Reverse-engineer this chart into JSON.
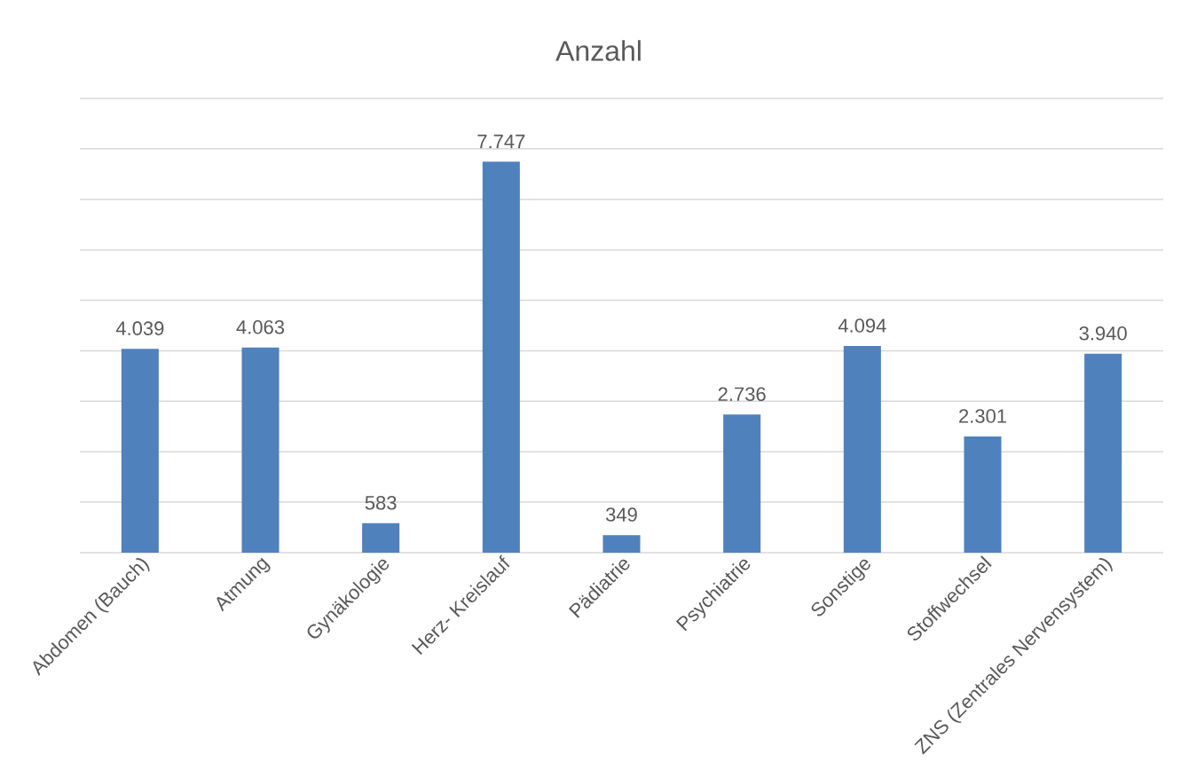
{
  "chart_data": {
    "type": "bar",
    "title": "Anzahl",
    "categories": [
      "Abdomen (Bauch)",
      "Atmung",
      "Gynäkologie",
      "Herz- Kreislauf",
      "Pädiatrie",
      "Psychiatrie",
      "Sonstige",
      "Stoffwechsel",
      "ZNS (Zentrales Nervensystem)"
    ],
    "values": [
      4039,
      4063,
      583,
      7747,
      349,
      2736,
      4094,
      2301,
      3940
    ],
    "value_labels": [
      "4.039",
      "4.063",
      "583",
      "7.747",
      "349",
      "2.736",
      "4.094",
      "2.301",
      "3.940"
    ],
    "color": "#4f81bd",
    "ylim": [
      0,
      9000
    ],
    "yticks": [
      {
        "value": 0,
        "label": null
      },
      {
        "value": 1000,
        "label": null
      },
      {
        "value": 2000,
        "label": null
      },
      {
        "value": 3000,
        "label": null
      },
      {
        "value": 4000,
        "label": null
      },
      {
        "value": 5000,
        "label": null
      },
      {
        "value": 6000,
        "label": null
      },
      {
        "value": 7000,
        "label": null
      },
      {
        "value": 8000,
        "label": null
      },
      {
        "value": 9000,
        "label": null
      }
    ],
    "tick_labels": "x",
    "grid": "y"
  }
}
